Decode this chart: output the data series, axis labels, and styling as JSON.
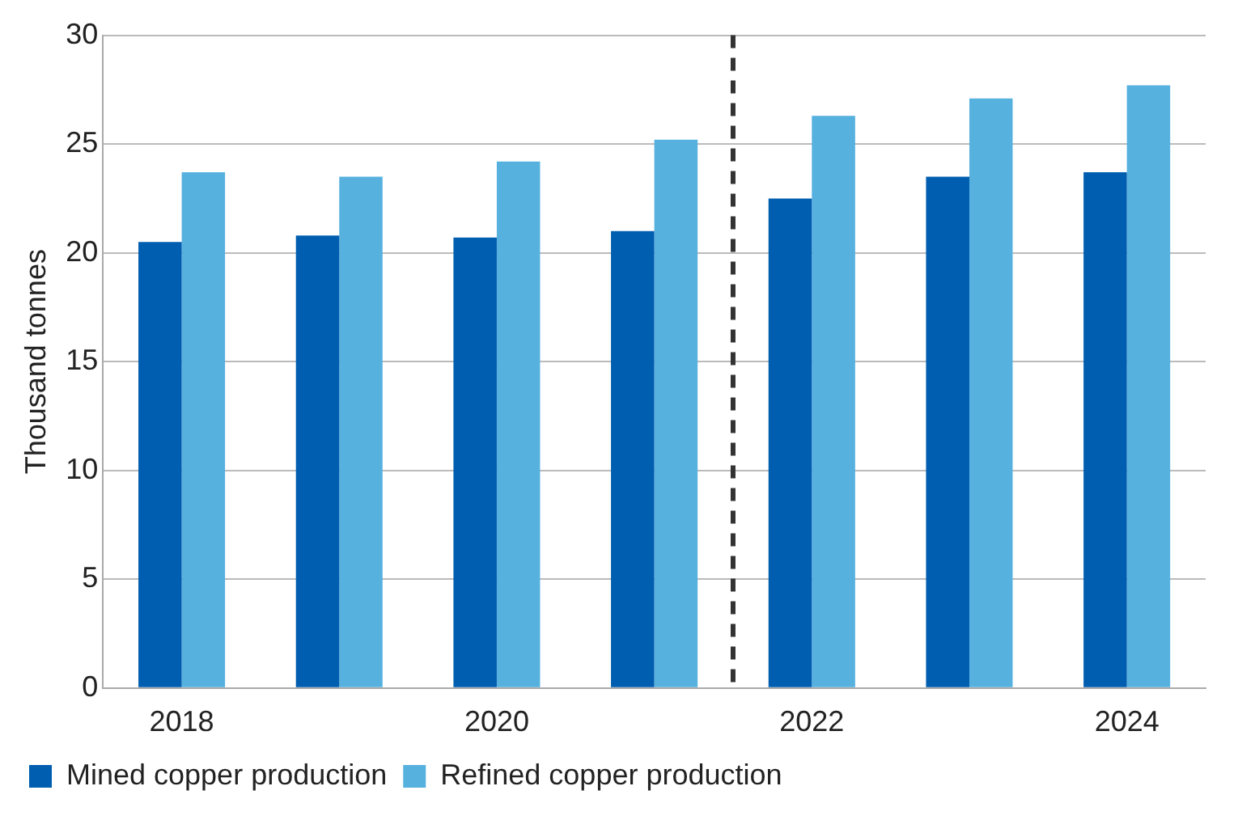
{
  "chart_data": {
    "type": "bar",
    "ylabel": "Thousand tonnes",
    "x": [
      2018,
      2019,
      2020,
      2021,
      2022,
      2023,
      2024
    ],
    "series": [
      {
        "name": "Mined copper production",
        "color": "#005eb0",
        "values": [
          20.5,
          20.8,
          20.7,
          21.0,
          22.5,
          23.5,
          23.7
        ]
      },
      {
        "name": "Refined copper production",
        "color": "#56b1df",
        "values": [
          23.7,
          23.5,
          24.2,
          25.2,
          26.3,
          27.1,
          27.7
        ]
      }
    ],
    "xlim": [
      2017.5,
      2024.5
    ],
    "xticks": [
      2018,
      2020,
      2022,
      2024
    ],
    "ylim": [
      0,
      30
    ],
    "yticks": [
      0,
      5,
      10,
      15,
      20,
      25,
      30
    ],
    "ref_lines": [
      {
        "axis": "x",
        "value": 2021.5,
        "color": "#333333",
        "line_style": "dashed"
      }
    ],
    "grid": "y",
    "legend": "bottom"
  }
}
